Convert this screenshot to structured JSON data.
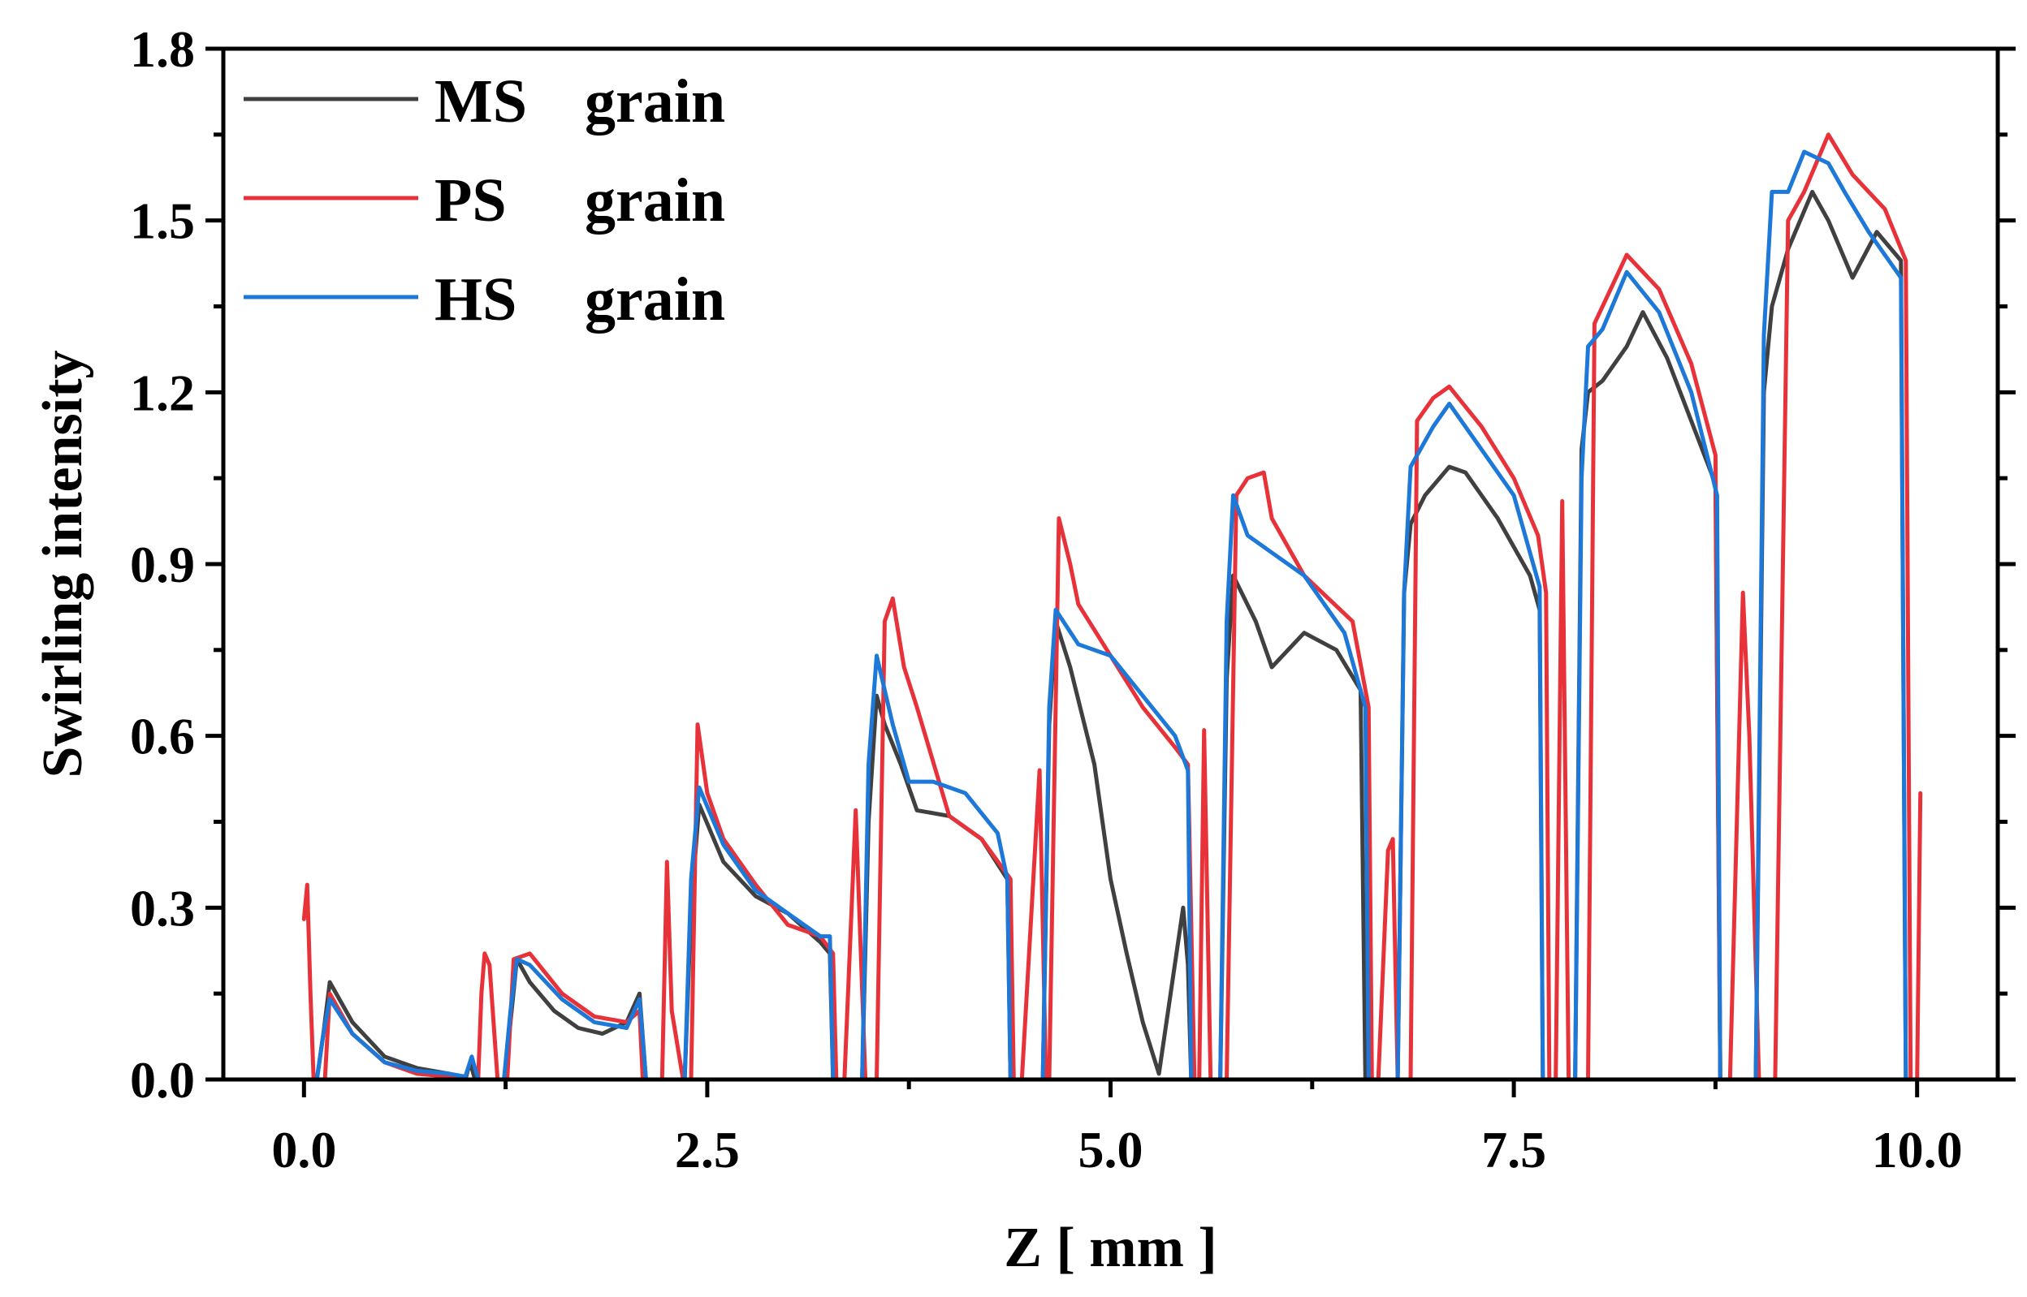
{
  "chart_data": {
    "type": "line",
    "title": "",
    "xlabel": "Z [ mm ]",
    "ylabel": "Swirling intensity",
    "xlim": [
      -0.5,
      10.5
    ],
    "ylim": [
      0.0,
      1.8
    ],
    "xticks": [
      0.0,
      2.5,
      5.0,
      7.5,
      10.0
    ],
    "xtick_labels": [
      "0.0",
      "2.5",
      "5.0",
      "7.5",
      "10.0"
    ],
    "yticks": [
      0.0,
      0.3,
      0.6,
      0.9,
      1.2,
      1.5,
      1.8
    ],
    "ytick_labels": [
      "0.0",
      "0.3",
      "0.6",
      "0.9",
      "1.2",
      "1.5",
      "1.8"
    ],
    "grid": false,
    "legend_position": "top-left",
    "series": [
      {
        "name": "MS",
        "suffix": "grain",
        "color": "#404040",
        "x": [
          0.0,
          0.08,
          0.12,
          0.16,
          0.3,
          0.5,
          0.7,
          0.9,
          1.0,
          1.03,
          1.06,
          1.24,
          1.28,
          1.32,
          1.4,
          1.55,
          1.7,
          1.85,
          2.0,
          2.08,
          2.12,
          2.15,
          2.3,
          2.36,
          2.4,
          2.45,
          2.6,
          2.8,
          3.0,
          3.2,
          3.26,
          3.28,
          3.32,
          3.46,
          3.5,
          3.55,
          3.6,
          3.7,
          3.8,
          4.0,
          4.2,
          4.36,
          4.38,
          4.42,
          4.58,
          4.62,
          4.66,
          4.75,
          4.9,
          5.0,
          5.1,
          5.2,
          5.3,
          5.45,
          5.48,
          5.5,
          5.68,
          5.72,
          5.76,
          5.9,
          6.0,
          6.2,
          6.4,
          6.55,
          6.58,
          6.62,
          6.78,
          6.82,
          6.86,
          6.95,
          7.1,
          7.2,
          7.4,
          7.6,
          7.66,
          7.68,
          7.72,
          7.88,
          7.92,
          7.96,
          8.05,
          8.2,
          8.3,
          8.45,
          8.6,
          8.75,
          8.78,
          8.82,
          9.0,
          9.05,
          9.1,
          9.2,
          9.35,
          9.45,
          9.6,
          9.75,
          9.9,
          9.93,
          9.96,
          10.0
        ],
        "values": [
          0.0,
          0.0,
          0.08,
          0.17,
          0.1,
          0.04,
          0.02,
          0.01,
          0.0,
          0.03,
          0.0,
          0.0,
          0.1,
          0.21,
          0.17,
          0.12,
          0.09,
          0.08,
          0.1,
          0.15,
          0.0,
          0.0,
          0.0,
          0.0,
          0.3,
          0.48,
          0.38,
          0.32,
          0.29,
          0.24,
          0.22,
          0.0,
          0.0,
          0.0,
          0.45,
          0.67,
          0.62,
          0.55,
          0.47,
          0.46,
          0.42,
          0.35,
          0.0,
          0.0,
          0.0,
          0.62,
          0.8,
          0.72,
          0.55,
          0.35,
          0.22,
          0.1,
          0.01,
          0.3,
          0.2,
          0.0,
          0.0,
          0.7,
          0.88,
          0.8,
          0.72,
          0.78,
          0.75,
          0.68,
          0.0,
          0.0,
          0.0,
          0.85,
          0.97,
          1.02,
          1.07,
          1.06,
          0.98,
          0.88,
          0.82,
          0.0,
          0.0,
          0.0,
          1.1,
          1.2,
          1.22,
          1.28,
          1.34,
          1.26,
          1.15,
          1.04,
          0.0,
          0.0,
          0.0,
          1.2,
          1.35,
          1.45,
          1.55,
          1.5,
          1.4,
          1.48,
          1.43,
          0.0,
          0.0,
          0.0
        ]
      },
      {
        "name": "PS",
        "suffix": "grain",
        "color": "#e8323a",
        "x": [
          0.0,
          0.02,
          0.04,
          0.06,
          0.1,
          0.13,
          0.16,
          0.3,
          0.5,
          0.7,
          0.9,
          1.0,
          1.04,
          1.08,
          1.1,
          1.12,
          1.15,
          1.2,
          1.26,
          1.3,
          1.4,
          1.6,
          1.8,
          2.0,
          2.08,
          2.1,
          2.22,
          2.25,
          2.28,
          2.35,
          2.4,
          2.44,
          2.5,
          2.6,
          2.8,
          3.0,
          3.2,
          3.28,
          3.3,
          3.32,
          3.35,
          3.42,
          3.48,
          3.55,
          3.6,
          3.65,
          3.72,
          3.8,
          4.0,
          4.2,
          4.38,
          4.4,
          4.42,
          4.45,
          4.56,
          4.6,
          4.62,
          4.68,
          4.75,
          4.8,
          5.0,
          5.2,
          5.4,
          5.48,
          5.52,
          5.55,
          5.58,
          5.62,
          5.72,
          5.78,
          5.85,
          5.95,
          6.0,
          6.2,
          6.5,
          6.6,
          6.62,
          6.66,
          6.72,
          6.75,
          6.78,
          6.86,
          6.9,
          7.0,
          7.1,
          7.3,
          7.5,
          7.65,
          7.7,
          7.72,
          7.76,
          7.8,
          7.84,
          7.9,
          7.96,
          8.0,
          8.1,
          8.2,
          8.4,
          8.6,
          8.75,
          8.78,
          8.8,
          8.84,
          8.92,
          8.96,
          9.02,
          9.06,
          9.12,
          9.2,
          9.3,
          9.45,
          9.6,
          9.8,
          9.93,
          9.96,
          10.0,
          10.02
        ],
        "values": [
          0.28,
          0.34,
          0.15,
          0.0,
          0.0,
          0.0,
          0.15,
          0.08,
          0.03,
          0.01,
          0.005,
          0.0,
          0.0,
          0.0,
          0.15,
          0.22,
          0.2,
          0.0,
          0.0,
          0.21,
          0.22,
          0.15,
          0.11,
          0.1,
          0.12,
          0.0,
          0.0,
          0.38,
          0.12,
          0.0,
          0.0,
          0.62,
          0.5,
          0.42,
          0.34,
          0.27,
          0.25,
          0.22,
          0.0,
          0.0,
          0.0,
          0.47,
          0.0,
          0.0,
          0.8,
          0.84,
          0.72,
          0.65,
          0.46,
          0.42,
          0.35,
          0.0,
          0.0,
          0.0,
          0.54,
          0.0,
          0.0,
          0.98,
          0.9,
          0.83,
          0.74,
          0.65,
          0.58,
          0.55,
          0.0,
          0.0,
          0.61,
          0.0,
          0.0,
          1.02,
          1.05,
          1.06,
          0.98,
          0.88,
          0.8,
          0.65,
          0.0,
          0.0,
          0.4,
          0.42,
          0.0,
          0.0,
          1.15,
          1.19,
          1.21,
          1.14,
          1.05,
          0.95,
          0.85,
          0.0,
          0.0,
          1.01,
          0.0,
          0.0,
          0.0,
          1.32,
          1.38,
          1.44,
          1.38,
          1.25,
          1.09,
          0.0,
          0.0,
          0.0,
          0.85,
          0.6,
          0.0,
          0.0,
          0.0,
          1.5,
          1.55,
          1.65,
          1.58,
          1.52,
          1.43,
          0.0,
          0.0,
          0.5
        ]
      },
      {
        "name": "HS",
        "suffix": "grain",
        "color": "#1e78d8",
        "x": [
          0.0,
          0.08,
          0.12,
          0.16,
          0.3,
          0.5,
          0.7,
          0.9,
          1.0,
          1.04,
          1.08,
          1.24,
          1.28,
          1.32,
          1.4,
          1.6,
          1.8,
          2.0,
          2.08,
          2.12,
          2.15,
          2.3,
          2.36,
          2.4,
          2.45,
          2.6,
          2.8,
          3.0,
          3.2,
          3.26,
          3.28,
          3.32,
          3.46,
          3.5,
          3.55,
          3.65,
          3.75,
          3.9,
          4.1,
          4.3,
          4.36,
          4.38,
          4.42,
          4.58,
          4.62,
          4.66,
          4.8,
          5.0,
          5.2,
          5.4,
          5.48,
          5.5,
          5.68,
          5.72,
          5.76,
          5.85,
          6.0,
          6.2,
          6.45,
          6.58,
          6.6,
          6.64,
          6.78,
          6.82,
          6.86,
          7.0,
          7.1,
          7.3,
          7.5,
          7.66,
          7.68,
          7.72,
          7.88,
          7.92,
          7.96,
          8.05,
          8.2,
          8.4,
          8.6,
          8.76,
          8.78,
          8.82,
          9.0,
          9.05,
          9.1,
          9.2,
          9.3,
          9.45,
          9.55,
          9.7,
          9.9,
          9.93,
          9.96,
          10.0
        ],
        "values": [
          0.0,
          0.0,
          0.08,
          0.14,
          0.08,
          0.03,
          0.015,
          0.01,
          0.005,
          0.04,
          0.0,
          0.0,
          0.12,
          0.21,
          0.2,
          0.14,
          0.1,
          0.09,
          0.14,
          0.0,
          0.0,
          0.0,
          0.0,
          0.35,
          0.51,
          0.41,
          0.33,
          0.29,
          0.25,
          0.25,
          0.0,
          0.0,
          0.0,
          0.55,
          0.74,
          0.62,
          0.52,
          0.52,
          0.5,
          0.43,
          0.35,
          0.0,
          0.0,
          0.0,
          0.65,
          0.82,
          0.76,
          0.74,
          0.67,
          0.6,
          0.54,
          0.0,
          0.0,
          0.8,
          1.02,
          0.95,
          0.92,
          0.88,
          0.78,
          0.65,
          0.0,
          0.0,
          0.0,
          0.85,
          1.07,
          1.14,
          1.18,
          1.1,
          1.02,
          0.86,
          0.0,
          0.0,
          0.0,
          1.05,
          1.28,
          1.31,
          1.41,
          1.34,
          1.2,
          1.02,
          0.0,
          0.0,
          0.0,
          1.3,
          1.55,
          1.55,
          1.62,
          1.6,
          1.55,
          1.48,
          1.4,
          0.0,
          0.0,
          0.0
        ]
      }
    ]
  }
}
